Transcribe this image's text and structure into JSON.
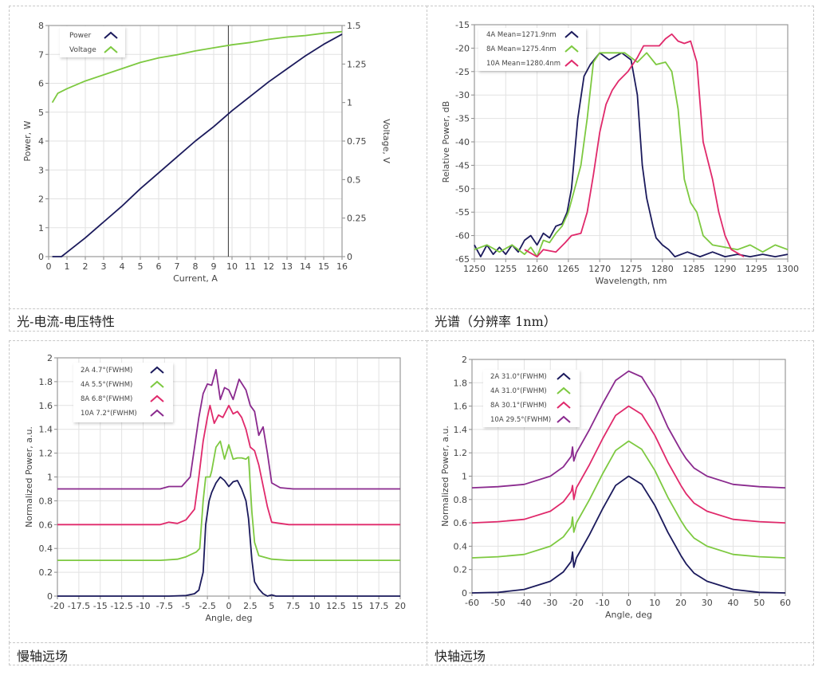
{
  "captions": [
    "光-电流-电压特性",
    "光谱（分辨率 1nm）",
    "慢轴远场",
    "快轴远场"
  ],
  "colors": {
    "navy": "#1b1a5c",
    "green": "#7dc940",
    "pink": "#e0296b",
    "purple": "#8a2a8e",
    "grid": "#e2e2e2",
    "axis": "#888888"
  },
  "chart_data": [
    {
      "type": "line",
      "title": "",
      "xlabel": "Current, A",
      "ylabel": "Power, W",
      "y2label": "Voltage, V",
      "xlim": [
        0,
        16
      ],
      "ylim": [
        0,
        8
      ],
      "y2lim": [
        0,
        1.5
      ],
      "xticks": [
        "0",
        "1",
        "2",
        "3",
        "4",
        "5",
        "6",
        "7",
        "8",
        "9",
        "10",
        "11",
        "12",
        "13",
        "14",
        "15",
        "16"
      ],
      "yticks": [
        "0",
        "1",
        "2",
        "3",
        "4",
        "5",
        "6",
        "7",
        "8"
      ],
      "y2ticks": [
        "0",
        "0.25",
        "0.5",
        "0.75",
        "1",
        "1.25",
        "1.5"
      ],
      "grid": true,
      "legend": "top-left",
      "cursor_x": 9.8,
      "series": [
        {
          "name": "Power",
          "color": "navy",
          "axis": "y",
          "x": [
            0.2,
            0.7,
            1,
            2,
            3,
            4,
            5,
            6,
            7,
            8,
            9,
            10,
            11,
            12,
            13,
            14,
            15,
            16
          ],
          "y": [
            0,
            0,
            0.15,
            0.65,
            1.2,
            1.75,
            2.35,
            2.9,
            3.45,
            4.0,
            4.5,
            5.05,
            5.55,
            6.05,
            6.5,
            6.95,
            7.35,
            7.7
          ]
        },
        {
          "name": "Voltage",
          "color": "green",
          "axis": "y2",
          "x": [
            0.2,
            0.5,
            1,
            2,
            3,
            4,
            5,
            6,
            7,
            8,
            9,
            10,
            11,
            12,
            13,
            14,
            15,
            16
          ],
          "y": [
            1.0,
            1.06,
            1.09,
            1.14,
            1.18,
            1.22,
            1.26,
            1.29,
            1.31,
            1.335,
            1.355,
            1.375,
            1.39,
            1.41,
            1.425,
            1.435,
            1.45,
            1.46
          ]
        }
      ]
    },
    {
      "type": "line",
      "xlabel": "Wavelength, nm",
      "ylabel": "Relative Power, dB",
      "xlim": [
        1250,
        1300
      ],
      "ylim": [
        -65,
        -15
      ],
      "xticks": [
        "1250",
        "1255",
        "1260",
        "1265",
        "1270",
        "1275",
        "1280",
        "1285",
        "1290",
        "1295",
        "1300"
      ],
      "yticks": [
        "-65",
        "-60",
        "-55",
        "-50",
        "-45",
        "-40",
        "-35",
        "-30",
        "-25",
        "-20",
        "-15"
      ],
      "grid": true,
      "legend": "top-left",
      "series": [
        {
          "name": "4A Mean=1271.9nm",
          "color": "navy",
          "x": [
            1250,
            1251,
            1252,
            1253,
            1254,
            1255,
            1256,
            1257,
            1258,
            1259,
            1260,
            1261,
            1262,
            1263,
            1264,
            1264.8,
            1265.5,
            1266.5,
            1267.5,
            1268.5,
            1270,
            1271.5,
            1273.5,
            1275,
            1276,
            1276.8,
            1277.5,
            1278.5,
            1279,
            1280,
            1281,
            1282,
            1284,
            1286,
            1288,
            1290,
            1292,
            1294,
            1296,
            1298,
            1300
          ],
          "y": [
            -62,
            -64.5,
            -62,
            -64,
            -62.5,
            -64,
            -62,
            -63.5,
            -61,
            -60,
            -62,
            -59.5,
            -60.5,
            -58,
            -57.5,
            -55,
            -50,
            -35,
            -26,
            -23.5,
            -21,
            -22.5,
            -21,
            -22.5,
            -30,
            -45,
            -52,
            -58,
            -60.5,
            -62,
            -63,
            -64.5,
            -63.5,
            -64.5,
            -63.5,
            -64.5,
            -64,
            -64.5,
            -64,
            -64.5,
            -64
          ]
        },
        {
          "name": "8A Mean=1275.4nm",
          "color": "green",
          "x": [
            1250,
            1252,
            1254,
            1256,
            1258,
            1259,
            1260,
            1261,
            1262,
            1263,
            1264,
            1265,
            1266,
            1267,
            1268,
            1269,
            1270,
            1272,
            1274,
            1275,
            1276,
            1277.5,
            1279,
            1280.5,
            1281.5,
            1282.5,
            1283.5,
            1284.5,
            1285.5,
            1286.5,
            1288,
            1290,
            1292,
            1294,
            1296,
            1298,
            1300
          ],
          "y": [
            -63,
            -62,
            -63.5,
            -62,
            -64,
            -62.5,
            -64.5,
            -61,
            -61.5,
            -59.5,
            -58,
            -55,
            -50,
            -45,
            -35,
            -23,
            -21,
            -21,
            -21,
            -22,
            -23,
            -21,
            -23.5,
            -23,
            -25,
            -33,
            -48,
            -53,
            -55,
            -60,
            -62,
            -62.5,
            -63,
            -62,
            -63.5,
            -62,
            -63
          ]
        },
        {
          "name": "10A Mean=1280.4nm",
          "color": "pink",
          "x": [
            1258,
            1260,
            1261,
            1263,
            1264.5,
            1265.5,
            1267,
            1268,
            1269,
            1270,
            1271,
            1272,
            1273,
            1274.5,
            1276,
            1277,
            1278.5,
            1279.5,
            1280.5,
            1281.5,
            1282.5,
            1283.5,
            1284.5,
            1285.5,
            1286.5,
            1288,
            1289,
            1290,
            1291,
            1293
          ],
          "y": [
            -63,
            -64.5,
            -63,
            -63.5,
            -61.5,
            -60,
            -59.5,
            -55,
            -47,
            -38,
            -32,
            -29,
            -27,
            -25,
            -22,
            -19.5,
            -19.5,
            -19.5,
            -18,
            -17,
            -18.5,
            -19,
            -18.5,
            -23,
            -40,
            -48,
            -55,
            -60,
            -63,
            -64.5
          ]
        }
      ]
    },
    {
      "type": "line",
      "xlabel": "Angle, deg",
      "ylabel": "Normalized Power, a.u.",
      "xlim": [
        -20,
        20
      ],
      "ylim": [
        0,
        2
      ],
      "xticks": [
        "-20",
        "-17.5",
        "-15",
        "-12.5",
        "-10",
        "-7.5",
        "-5",
        "-2.5",
        "0",
        "2.5",
        "5",
        "7.5",
        "10",
        "12.5",
        "15",
        "17.5",
        "20"
      ],
      "yticks": [
        "0",
        "0.2",
        "0.4",
        "0.6",
        "0.8",
        "1",
        "1.2",
        "1.4",
        "1.6",
        "1.8",
        "2"
      ],
      "grid": true,
      "legend": "top-left",
      "series": [
        {
          "name": "2A 4.7°(FWHM)",
          "color": "navy",
          "x": [
            -20,
            -7,
            -5,
            -4,
            -3.5,
            -3,
            -2.7,
            -2.3,
            -2,
            -1.5,
            -1,
            -0.5,
            0,
            0.5,
            1,
            1.5,
            2,
            2.3,
            2.7,
            3,
            3.5,
            4,
            4.5,
            5,
            5.5,
            20
          ],
          "y": [
            0,
            0,
            0.005,
            0.02,
            0.05,
            0.2,
            0.6,
            0.8,
            0.87,
            0.95,
            1.0,
            0.97,
            0.92,
            0.96,
            0.97,
            0.9,
            0.8,
            0.65,
            0.3,
            0.12,
            0.06,
            0.02,
            0,
            0.01,
            0,
            0
          ]
        },
        {
          "name": "4A 5.5°(FWHM)",
          "color": "green",
          "x": [
            -20,
            -8,
            -6,
            -5,
            -3.8,
            -3.4,
            -3,
            -2.7,
            -2.2,
            -2,
            -1.5,
            -1,
            -0.5,
            0,
            0.5,
            1,
            1.5,
            2,
            2.3,
            2.7,
            3,
            3.5,
            5,
            7,
            20
          ],
          "y": [
            0.3,
            0.3,
            0.31,
            0.33,
            0.37,
            0.4,
            0.8,
            1.0,
            1.0,
            1.05,
            1.25,
            1.3,
            1.15,
            1.27,
            1.15,
            1.16,
            1.16,
            1.15,
            1.17,
            0.7,
            0.45,
            0.34,
            0.31,
            0.3,
            0.3
          ]
        },
        {
          "name": "8A 6.8°(FWHM)",
          "color": "pink",
          "x": [
            -20,
            -8,
            -7,
            -6,
            -5,
            -4,
            -3.5,
            -3,
            -2.5,
            -2.2,
            -1.7,
            -1.2,
            -0.7,
            0,
            0.5,
            1,
            1.5,
            2,
            2.5,
            3,
            3.5,
            4.5,
            5,
            7,
            20
          ],
          "y": [
            0.6,
            0.6,
            0.62,
            0.61,
            0.64,
            0.73,
            1.0,
            1.3,
            1.5,
            1.6,
            1.45,
            1.52,
            1.5,
            1.6,
            1.53,
            1.55,
            1.5,
            1.4,
            1.25,
            1.22,
            1.1,
            0.75,
            0.62,
            0.6,
            0.6
          ]
        },
        {
          "name": "10A 7.2°(FWHM)",
          "color": "purple",
          "x": [
            -20,
            -8,
            -7,
            -5.5,
            -4.5,
            -3.5,
            -3,
            -2.5,
            -2,
            -1.5,
            -1,
            -0.5,
            0,
            0.5,
            1.2,
            2,
            2.5,
            3,
            3.5,
            4,
            4.5,
            5,
            6,
            7.5,
            20
          ],
          "y": [
            0.9,
            0.9,
            0.92,
            0.92,
            1.0,
            1.5,
            1.7,
            1.78,
            1.77,
            1.9,
            1.65,
            1.75,
            1.73,
            1.65,
            1.82,
            1.73,
            1.6,
            1.55,
            1.35,
            1.42,
            1.2,
            0.95,
            0.91,
            0.9,
            0.9
          ]
        }
      ]
    },
    {
      "type": "line",
      "xlabel": "Angle, deg",
      "ylabel": "Normalized Power, a.u.",
      "xlim": [
        -60,
        60
      ],
      "ylim": [
        0,
        2
      ],
      "xticks": [
        "-60",
        "-50",
        "-40",
        "-30",
        "-20",
        "-10",
        "0",
        "10",
        "20",
        "30",
        "40",
        "50",
        "60"
      ],
      "yticks": [
        "0",
        "0.2",
        "0.4",
        "0.6",
        "0.8",
        "1",
        "1.2",
        "1.4",
        "1.6",
        "1.8",
        "2"
      ],
      "grid": true,
      "legend": "top-left",
      "x": [
        -60,
        -50,
        -40,
        -30,
        -25,
        -22,
        -21.5,
        -21,
        -20,
        -15,
        -10,
        -5,
        0,
        5,
        10,
        15,
        20,
        22,
        25,
        30,
        40,
        50,
        60
      ],
      "series": [
        {
          "name": "2A 31.0°(FWHM)",
          "color": "navy",
          "y": [
            0,
            0.005,
            0.03,
            0.1,
            0.18,
            0.27,
            0.35,
            0.22,
            0.3,
            0.5,
            0.72,
            0.92,
            1.0,
            0.93,
            0.75,
            0.52,
            0.32,
            0.25,
            0.17,
            0.1,
            0.03,
            0.005,
            0
          ]
        },
        {
          "name": "4A 31.0°(FWHM)",
          "color": "green",
          "y": [
            0.3,
            0.31,
            0.33,
            0.4,
            0.48,
            0.57,
            0.65,
            0.52,
            0.6,
            0.8,
            1.02,
            1.22,
            1.3,
            1.23,
            1.05,
            0.82,
            0.62,
            0.55,
            0.47,
            0.4,
            0.33,
            0.31,
            0.3
          ]
        },
        {
          "name": "8A 30.1°(FWHM)",
          "color": "pink",
          "y": [
            0.6,
            0.61,
            0.63,
            0.7,
            0.78,
            0.87,
            0.92,
            0.8,
            0.9,
            1.1,
            1.32,
            1.52,
            1.6,
            1.53,
            1.35,
            1.12,
            0.92,
            0.85,
            0.77,
            0.7,
            0.63,
            0.61,
            0.6
          ]
        },
        {
          "name": "10A 29.5°(FWHM)",
          "color": "purple",
          "y": [
            0.9,
            0.91,
            0.93,
            1.0,
            1.08,
            1.17,
            1.25,
            1.13,
            1.2,
            1.4,
            1.62,
            1.82,
            1.9,
            1.85,
            1.67,
            1.42,
            1.22,
            1.15,
            1.07,
            1.0,
            0.93,
            0.91,
            0.9
          ]
        }
      ]
    }
  ]
}
